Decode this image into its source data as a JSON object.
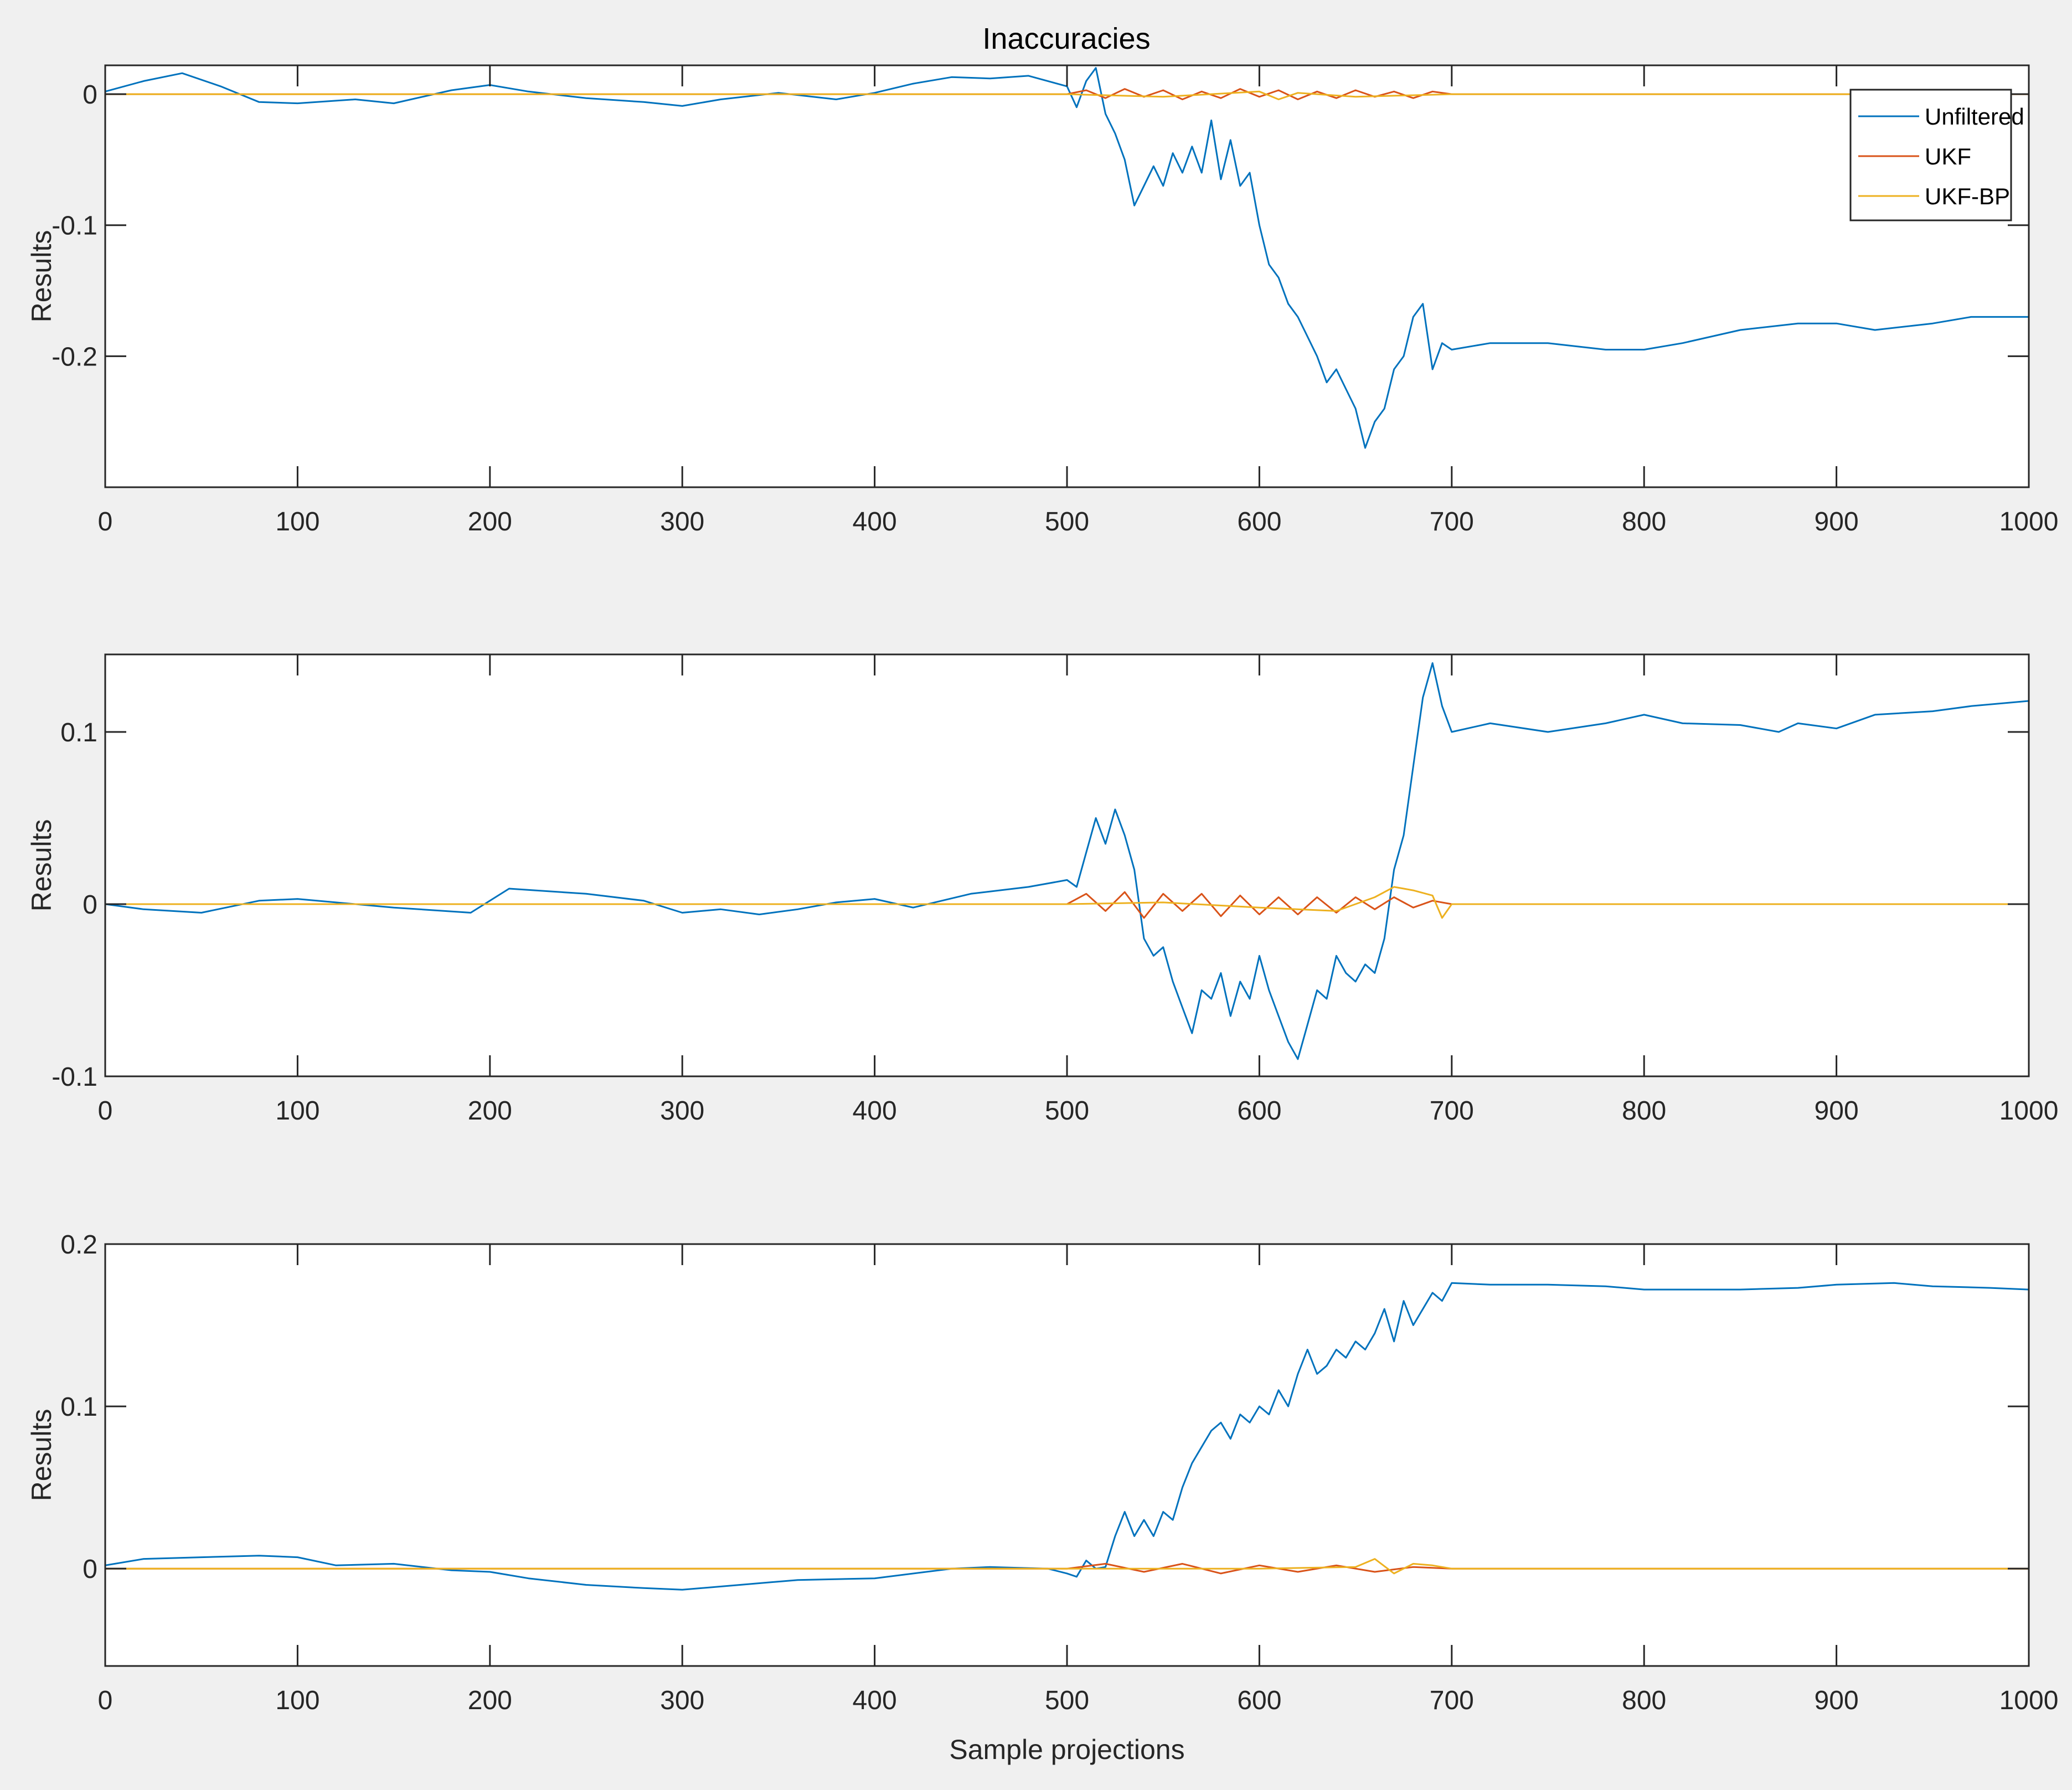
{
  "chart_data": [
    {
      "type": "line",
      "title": "Inaccuracies",
      "xlabel": "",
      "ylabel": "Results",
      "xlim": [
        0,
        1000
      ],
      "ylim": [
        -0.3,
        0.022
      ],
      "xticks": [
        0,
        100,
        200,
        300,
        400,
        500,
        600,
        700,
        800,
        900,
        1000
      ],
      "yticks": [
        -0.2,
        -0.1,
        0
      ],
      "ytick_labels": [
        "-0.2",
        "-0.1",
        "0"
      ],
      "grid": false,
      "legend": {
        "placement": "top-right",
        "entries": [
          "Unfiltered",
          "UKF",
          "UKF-BP"
        ]
      },
      "series": [
        {
          "name": "Unfiltered",
          "color": "#0072BD",
          "x": [
            0,
            20,
            40,
            60,
            80,
            100,
            130,
            150,
            180,
            200,
            220,
            250,
            280,
            300,
            320,
            350,
            380,
            400,
            420,
            440,
            460,
            480,
            500,
            505,
            510,
            515,
            520,
            525,
            530,
            535,
            540,
            545,
            550,
            555,
            560,
            565,
            570,
            575,
            580,
            585,
            590,
            595,
            600,
            605,
            610,
            615,
            620,
            625,
            630,
            635,
            640,
            645,
            650,
            655,
            660,
            665,
            670,
            675,
            680,
            685,
            690,
            695,
            700,
            720,
            750,
            780,
            800,
            820,
            850,
            880,
            900,
            920,
            950,
            970,
            1000
          ],
          "y": [
            0.002,
            0.01,
            0.016,
            0.006,
            -0.006,
            -0.007,
            -0.004,
            -0.007,
            0.003,
            0.007,
            0.002,
            -0.003,
            -0.006,
            -0.009,
            -0.004,
            0.001,
            -0.004,
            0.001,
            0.008,
            0.013,
            0.012,
            0.014,
            0.006,
            -0.01,
            0.01,
            0.02,
            -0.015,
            -0.03,
            -0.05,
            -0.085,
            -0.07,
            -0.055,
            -0.07,
            -0.045,
            -0.06,
            -0.04,
            -0.06,
            -0.02,
            -0.065,
            -0.035,
            -0.07,
            -0.06,
            -0.1,
            -0.13,
            -0.14,
            -0.16,
            -0.17,
            -0.185,
            -0.2,
            -0.22,
            -0.21,
            -0.225,
            -0.24,
            -0.27,
            -0.25,
            -0.24,
            -0.21,
            -0.2,
            -0.17,
            -0.16,
            -0.21,
            -0.19,
            -0.195,
            -0.19,
            -0.19,
            -0.195,
            -0.195,
            -0.19,
            -0.18,
            -0.175,
            -0.175,
            -0.18,
            -0.175,
            -0.17,
            -0.17
          ]
        },
        {
          "name": "UKF",
          "color": "#D95319",
          "x": [
            0,
            100,
            200,
            300,
            400,
            500,
            510,
            520,
            530,
            540,
            550,
            560,
            570,
            580,
            590,
            600,
            610,
            620,
            630,
            640,
            650,
            660,
            670,
            680,
            690,
            700,
            800,
            900,
            1000
          ],
          "y": [
            0,
            0,
            0,
            0,
            0,
            0,
            0.003,
            -0.003,
            0.004,
            -0.002,
            0.003,
            -0.004,
            0.002,
            -0.003,
            0.004,
            -0.002,
            0.003,
            -0.004,
            0.002,
            -0.003,
            0.003,
            -0.002,
            0.002,
            -0.003,
            0.002,
            0,
            0,
            0,
            0
          ]
        },
        {
          "name": "UKF-BP",
          "color": "#EDB120",
          "x": [
            0,
            100,
            200,
            300,
            400,
            500,
            550,
            600,
            610,
            620,
            650,
            700,
            800,
            900,
            1000
          ],
          "y": [
            0,
            0,
            0,
            0,
            0,
            0,
            -0.002,
            0.002,
            -0.004,
            0.001,
            -0.002,
            0,
            0,
            0,
            0
          ]
        }
      ]
    },
    {
      "type": "line",
      "title": "",
      "xlabel": "",
      "ylabel": "Results",
      "xlim": [
        0,
        1000
      ],
      "ylim": [
        -0.1,
        0.145
      ],
      "xticks": [
        0,
        100,
        200,
        300,
        400,
        500,
        600,
        700,
        800,
        900,
        1000
      ],
      "yticks": [
        -0.1,
        0,
        0.1
      ],
      "ytick_labels": [
        "-0.1",
        "0",
        "0.1"
      ],
      "grid": false,
      "series": [
        {
          "name": "Unfiltered",
          "color": "#0072BD",
          "x": [
            0,
            20,
            50,
            80,
            100,
            150,
            190,
            210,
            250,
            280,
            300,
            320,
            340,
            360,
            380,
            400,
            420,
            450,
            480,
            500,
            505,
            510,
            515,
            520,
            525,
            530,
            535,
            540,
            545,
            550,
            555,
            560,
            565,
            570,
            575,
            580,
            585,
            590,
            595,
            600,
            605,
            610,
            615,
            620,
            625,
            630,
            635,
            640,
            645,
            650,
            655,
            660,
            665,
            670,
            675,
            680,
            685,
            690,
            695,
            700,
            720,
            750,
            780,
            800,
            820,
            850,
            870,
            880,
            900,
            920,
            950,
            970,
            1000
          ],
          "y": [
            0,
            -0.003,
            -0.005,
            0.002,
            0.003,
            -0.002,
            -0.005,
            0.009,
            0.006,
            0.002,
            -0.005,
            -0.003,
            -0.006,
            -0.003,
            0.001,
            0.003,
            -0.002,
            0.006,
            0.01,
            0.014,
            0.01,
            0.03,
            0.05,
            0.035,
            0.055,
            0.04,
            0.02,
            -0.02,
            -0.03,
            -0.025,
            -0.045,
            -0.06,
            -0.075,
            -0.05,
            -0.055,
            -0.04,
            -0.065,
            -0.045,
            -0.055,
            -0.03,
            -0.05,
            -0.065,
            -0.08,
            -0.09,
            -0.07,
            -0.05,
            -0.055,
            -0.03,
            -0.04,
            -0.045,
            -0.035,
            -0.04,
            -0.02,
            0.02,
            0.04,
            0.08,
            0.12,
            0.14,
            0.115,
            0.1,
            0.105,
            0.1,
            0.105,
            0.11,
            0.105,
            0.104,
            0.1,
            0.105,
            0.102,
            0.11,
            0.112,
            0.115,
            0.118
          ]
        },
        {
          "name": "UKF",
          "color": "#D95319",
          "x": [
            0,
            100,
            200,
            300,
            400,
            500,
            510,
            520,
            530,
            540,
            550,
            560,
            570,
            580,
            590,
            600,
            610,
            620,
            630,
            640,
            650,
            660,
            670,
            680,
            690,
            700,
            800,
            900,
            1000
          ],
          "y": [
            0,
            0,
            0,
            0,
            0,
            0,
            0.006,
            -0.004,
            0.007,
            -0.008,
            0.006,
            -0.004,
            0.006,
            -0.007,
            0.005,
            -0.006,
            0.004,
            -0.006,
            0.004,
            -0.005,
            0.004,
            -0.003,
            0.004,
            -0.002,
            0.002,
            0,
            0,
            0,
            0
          ]
        },
        {
          "name": "UKF-BP",
          "color": "#EDB120",
          "x": [
            0,
            100,
            200,
            300,
            400,
            500,
            550,
            600,
            640,
            660,
            670,
            680,
            690,
            695,
            700,
            800,
            900,
            1000
          ],
          "y": [
            0,
            0,
            0,
            0,
            0,
            0,
            0.001,
            -0.002,
            -0.004,
            0.004,
            0.01,
            0.008,
            0.005,
            -0.008,
            0,
            0,
            0,
            0
          ]
        }
      ]
    },
    {
      "type": "line",
      "title": "",
      "xlabel": "Sample projections",
      "ylabel": "Results",
      "xlim": [
        0,
        1000
      ],
      "ylim": [
        -0.06,
        0.2
      ],
      "xticks": [
        0,
        100,
        200,
        300,
        400,
        500,
        600,
        700,
        800,
        900,
        1000
      ],
      "yticks": [
        0,
        0.1,
        0.2
      ],
      "ytick_labels": [
        "0",
        "0.1",
        "0.2"
      ],
      "grid": false,
      "series": [
        {
          "name": "Unfiltered",
          "color": "#0072BD",
          "x": [
            0,
            20,
            50,
            80,
            100,
            120,
            150,
            180,
            200,
            220,
            250,
            280,
            300,
            330,
            360,
            400,
            440,
            460,
            490,
            500,
            505,
            510,
            515,
            520,
            525,
            530,
            535,
            540,
            545,
            550,
            555,
            560,
            565,
            570,
            575,
            580,
            585,
            590,
            595,
            600,
            605,
            610,
            615,
            620,
            625,
            630,
            635,
            640,
            645,
            650,
            655,
            660,
            665,
            670,
            675,
            680,
            685,
            690,
            695,
            700,
            720,
            750,
            780,
            800,
            820,
            850,
            880,
            900,
            930,
            950,
            980,
            1000
          ],
          "y": [
            0.002,
            0.006,
            0.007,
            0.008,
            0.007,
            0.002,
            0.003,
            -0.001,
            -0.002,
            -0.006,
            -0.01,
            -0.012,
            -0.013,
            -0.01,
            -0.007,
            -0.006,
            0,
            0.001,
            0,
            -0.003,
            -0.005,
            0.005,
            0,
            0.001,
            0.02,
            0.035,
            0.02,
            0.03,
            0.02,
            0.035,
            0.03,
            0.05,
            0.065,
            0.075,
            0.085,
            0.09,
            0.08,
            0.095,
            0.09,
            0.1,
            0.095,
            0.11,
            0.1,
            0.12,
            0.135,
            0.12,
            0.125,
            0.135,
            0.13,
            0.14,
            0.135,
            0.145,
            0.16,
            0.14,
            0.165,
            0.15,
            0.16,
            0.17,
            0.165,
            0.176,
            0.175,
            0.175,
            0.174,
            0.172,
            0.172,
            0.172,
            0.173,
            0.175,
            0.176,
            0.174,
            0.173,
            0.172
          ]
        },
        {
          "name": "UKF",
          "color": "#D95319",
          "x": [
            0,
            100,
            200,
            300,
            400,
            500,
            520,
            540,
            560,
            580,
            600,
            620,
            640,
            660,
            680,
            700,
            800,
            900,
            1000
          ],
          "y": [
            0,
            0,
            0,
            0,
            0,
            0,
            0.003,
            -0.002,
            0.003,
            -0.003,
            0.002,
            -0.002,
            0.002,
            -0.002,
            0.001,
            0,
            0,
            0,
            0
          ]
        },
        {
          "name": "UKF-BP",
          "color": "#EDB120",
          "x": [
            0,
            100,
            200,
            300,
            400,
            500,
            600,
            650,
            660,
            670,
            680,
            690,
            700,
            800,
            900,
            1000
          ],
          "y": [
            0,
            0,
            0,
            0,
            0,
            0,
            0,
            0.001,
            0.006,
            -0.003,
            0.003,
            0.002,
            0,
            0,
            0,
            0
          ]
        }
      ]
    }
  ]
}
